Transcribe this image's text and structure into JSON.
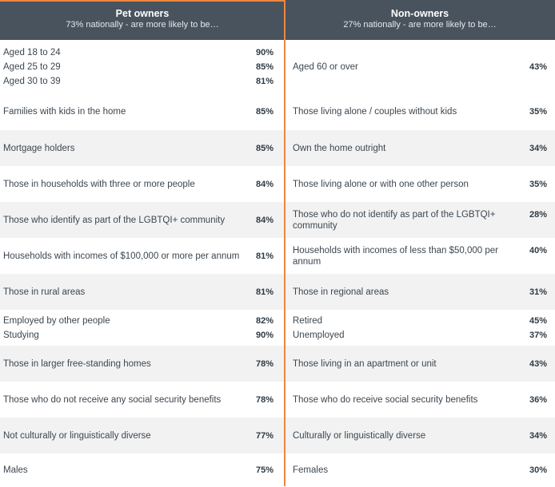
{
  "left": {
    "title": "Pet owners",
    "subtitle": "73% nationally - are more likely to be…",
    "rows": [
      {
        "h": 67,
        "alt": false,
        "lines": [
          {
            "label": "Aged 18 to 24",
            "pct": "90%"
          },
          {
            "label": "Aged 25 to 29",
            "pct": "85%"
          },
          {
            "label": "Aged 30 to 39",
            "pct": "81%"
          }
        ]
      },
      {
        "h": 46,
        "alt": false,
        "lines": [
          {
            "label": "Families with kids in the home",
            "pct": "85%"
          }
        ]
      },
      {
        "h": 45,
        "alt": true,
        "lines": [
          {
            "label": "Mortgage holders",
            "pct": "85%"
          }
        ]
      },
      {
        "h": 45,
        "alt": false,
        "lines": [
          {
            "label": "Those in households with three or more people",
            "pct": "84%"
          }
        ]
      },
      {
        "h": 45,
        "alt": true,
        "lines": [
          {
            "label": "Those who identify as part of the LGBTQI+ community",
            "pct": "84%"
          }
        ]
      },
      {
        "h": 45,
        "alt": false,
        "lines": [
          {
            "label": "Households with incomes of $100,000 or more per annum",
            "pct": "81%"
          }
        ]
      },
      {
        "h": 45,
        "alt": true,
        "lines": [
          {
            "label": "Those in rural areas",
            "pct": "81%"
          }
        ]
      },
      {
        "h": 45,
        "alt": false,
        "lines": [
          {
            "label": "Employed by other people",
            "pct": "82%"
          },
          {
            "label": "Studying",
            "pct": "90%"
          }
        ]
      },
      {
        "h": 45,
        "alt": true,
        "lines": [
          {
            "label": "Those in larger free-standing homes",
            "pct": "78%"
          }
        ]
      },
      {
        "h": 45,
        "alt": false,
        "lines": [
          {
            "label": "Those who do not receive any social security benefits",
            "pct": "78%"
          }
        ]
      },
      {
        "h": 45,
        "alt": true,
        "lines": [
          {
            "label": "Not culturally or linguistically diverse",
            "pct": "77%"
          }
        ]
      },
      {
        "h": 42,
        "alt": false,
        "lines": [
          {
            "label": "Males",
            "pct": "75%"
          }
        ]
      }
    ]
  },
  "right": {
    "title": "Non-owners",
    "subtitle": "27% nationally - are more likely to be…",
    "rows": [
      {
        "h": 67,
        "alt": false,
        "lines": [
          {
            "label": "Aged 60 or over",
            "pct": "43%"
          }
        ]
      },
      {
        "h": 46,
        "alt": false,
        "lines": [
          {
            "label": "Those living alone / couples without kids",
            "pct": "35%"
          }
        ]
      },
      {
        "h": 45,
        "alt": true,
        "lines": [
          {
            "label": "Own the home outright",
            "pct": "34%"
          }
        ]
      },
      {
        "h": 45,
        "alt": false,
        "lines": [
          {
            "label": "Those living alone or with one other person",
            "pct": "35%"
          }
        ]
      },
      {
        "h": 45,
        "alt": true,
        "lines": [
          {
            "label": "Those who do not identify as part of the LGBTQI+ community",
            "pct": "28%"
          }
        ]
      },
      {
        "h": 45,
        "alt": false,
        "lines": [
          {
            "label": "Households with incomes of less than $50,000 per annum",
            "pct": "40%"
          }
        ]
      },
      {
        "h": 45,
        "alt": true,
        "lines": [
          {
            "label": "Those in regional areas",
            "pct": "31%"
          }
        ]
      },
      {
        "h": 45,
        "alt": false,
        "lines": [
          {
            "label": "Retired",
            "pct": "45%"
          },
          {
            "label": "Unemployed",
            "pct": "37%"
          }
        ]
      },
      {
        "h": 45,
        "alt": true,
        "lines": [
          {
            "label": "Those living in an apartment or unit",
            "pct": "43%"
          }
        ]
      },
      {
        "h": 45,
        "alt": false,
        "lines": [
          {
            "label": "Those who do receive social security benefits",
            "pct": "36%"
          }
        ]
      },
      {
        "h": 45,
        "alt": true,
        "lines": [
          {
            "label": "Culturally or linguistically diverse",
            "pct": "34%"
          }
        ]
      },
      {
        "h": 42,
        "alt": false,
        "lines": [
          {
            "label": "Females",
            "pct": "30%"
          }
        ]
      }
    ]
  },
  "colors": {
    "header_bg": "#48535e",
    "divider": "#ec8740",
    "alt_row": "#f2f2f2"
  }
}
